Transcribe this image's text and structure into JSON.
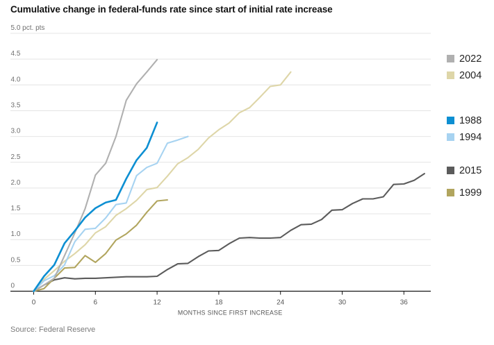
{
  "header": {
    "title": "Cumulative change in federal-funds rate since start of initial rate increase"
  },
  "source": "Source: Federal Reserve",
  "chart_data": {
    "type": "line",
    "title": "Cumulative change in federal-funds rate since start of initial rate increase",
    "xlabel": "MONTHS SINCE FIRST INCREASE",
    "ylabel": "pct. pts",
    "y_top_label": "5.0 pct. pts",
    "xlim": [
      0,
      38.5
    ],
    "ylim": [
      0,
      5.0
    ],
    "x_ticks": [
      0,
      6,
      12,
      18,
      24,
      30,
      36
    ],
    "y_ticks": [
      0,
      0.5,
      1.0,
      1.5,
      2.0,
      2.5,
      3.0,
      3.5,
      4.0,
      4.5,
      5.0
    ],
    "grid": true,
    "legend_position": "right",
    "x_step_months": 1,
    "series": [
      {
        "name": "2022",
        "color": "#b0b0b0",
        "values": [
          0,
          0.12,
          0.25,
          0.69,
          1.13,
          1.6,
          2.25,
          2.48,
          3.0,
          3.7,
          4.02,
          4.25,
          4.49
        ]
      },
      {
        "name": "2004",
        "color": "#ded6a8",
        "values": [
          0,
          0.23,
          0.4,
          0.58,
          0.73,
          0.9,
          1.13,
          1.25,
          1.47,
          1.6,
          1.76,
          1.97,
          2.01,
          2.23,
          2.47,
          2.59,
          2.75,
          2.97,
          3.13,
          3.26,
          3.46,
          3.56,
          3.76,
          3.97,
          4.0,
          4.25
        ]
      },
      {
        "name": "1988",
        "color": "#0d8fd2",
        "values": [
          0,
          0.29,
          0.51,
          0.93,
          1.17,
          1.43,
          1.61,
          1.72,
          1.77,
          2.18,
          2.54,
          2.78,
          3.27
        ]
      },
      {
        "name": "1994",
        "color": "#a7d3f1",
        "values": [
          0,
          0.2,
          0.3,
          0.51,
          0.96,
          1.2,
          1.22,
          1.42,
          1.68,
          1.71,
          2.24,
          2.4,
          2.48,
          2.87,
          2.93,
          3.0
        ]
      },
      {
        "name": "2015",
        "color": "#5b5b5b",
        "values": [
          0,
          0.12,
          0.22,
          0.26,
          0.24,
          0.25,
          0.25,
          0.26,
          0.27,
          0.28,
          0.28,
          0.28,
          0.29,
          0.42,
          0.53,
          0.54,
          0.67,
          0.78,
          0.79,
          0.92,
          1.03,
          1.04,
          1.03,
          1.03,
          1.04,
          1.18,
          1.29,
          1.3,
          1.39,
          1.57,
          1.58,
          1.7,
          1.79,
          1.79,
          1.83,
          2.07,
          2.08,
          2.15,
          2.28
        ]
      },
      {
        "name": "1999",
        "color": "#b1a55e",
        "values": [
          0,
          0.05,
          0.25,
          0.45,
          0.46,
          0.69,
          0.56,
          0.73,
          0.99,
          1.11,
          1.28,
          1.53,
          1.75,
          1.77
        ]
      }
    ]
  }
}
